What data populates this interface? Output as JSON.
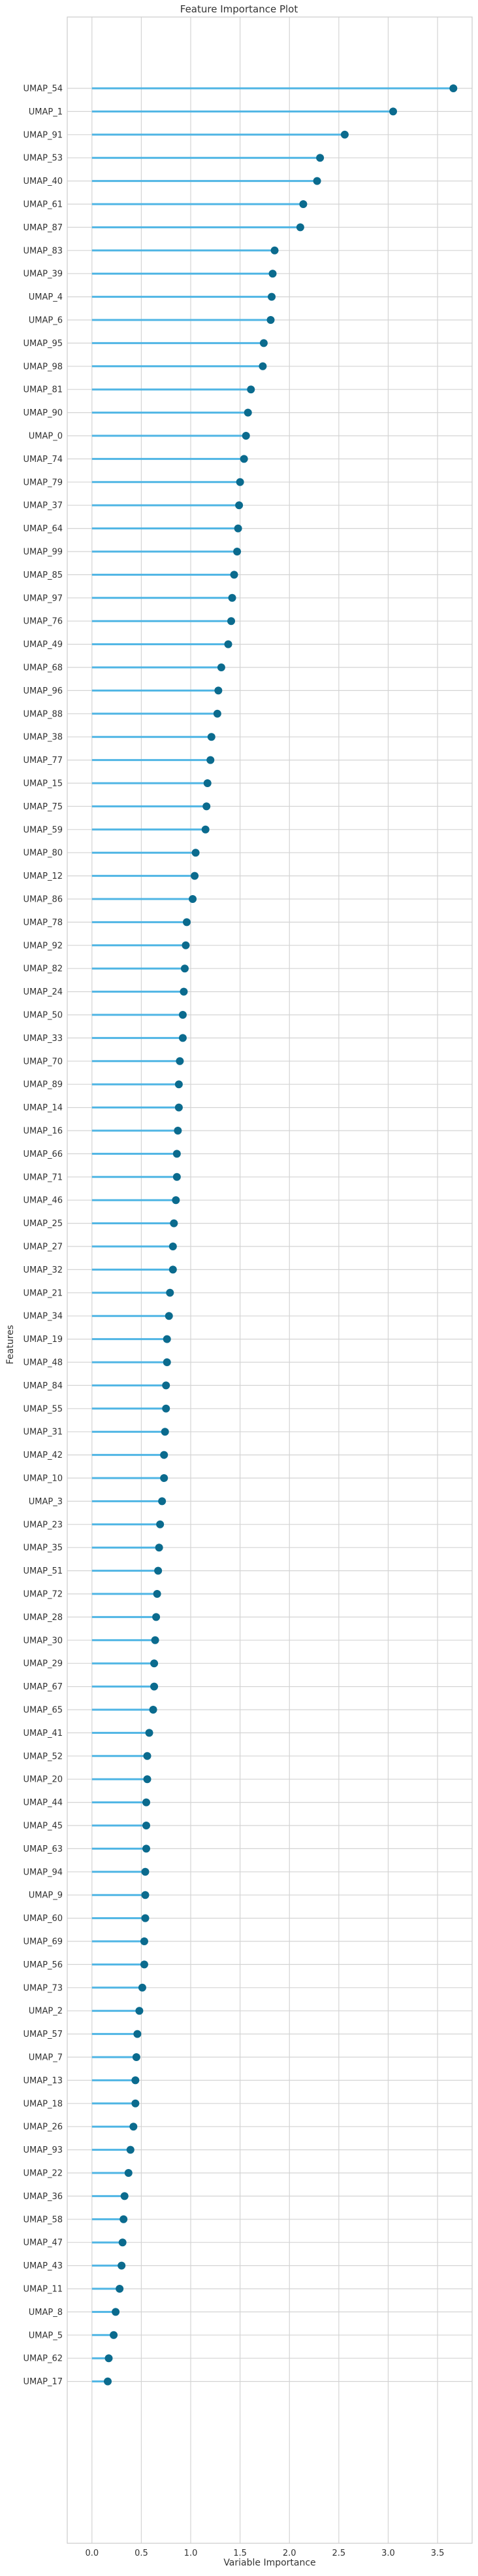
{
  "colors": {
    "line": "#4fb5e4",
    "dot": "#0b6b8e",
    "grid": "#d4d4d4",
    "plot_border": "#cccccc",
    "text": "#333333",
    "background": "#ffffff"
  },
  "chart_data": {
    "type": "lollipop",
    "title": "Feature Importance Plot",
    "xlabel": "Variable Importance",
    "ylabel": "Features",
    "xlim": [
      -0.25,
      3.85
    ],
    "xticks": [
      "0.0",
      "0.5",
      "1.0",
      "1.5",
      "2.0",
      "2.5",
      "3.0",
      "3.5"
    ],
    "grid": true,
    "categories": [
      "UMAP_54",
      "UMAP_1",
      "UMAP_91",
      "UMAP_53",
      "UMAP_40",
      "UMAP_61",
      "UMAP_87",
      "UMAP_83",
      "UMAP_39",
      "UMAP_4",
      "UMAP_6",
      "UMAP_95",
      "UMAP_98",
      "UMAP_81",
      "UMAP_90",
      "UMAP_0",
      "UMAP_74",
      "UMAP_79",
      "UMAP_37",
      "UMAP_64",
      "UMAP_99",
      "UMAP_85",
      "UMAP_97",
      "UMAP_76",
      "UMAP_49",
      "UMAP_68",
      "UMAP_96",
      "UMAP_88",
      "UMAP_38",
      "UMAP_77",
      "UMAP_15",
      "UMAP_75",
      "UMAP_59",
      "UMAP_80",
      "UMAP_12",
      "UMAP_86",
      "UMAP_78",
      "UMAP_92",
      "UMAP_82",
      "UMAP_24",
      "UMAP_50",
      "UMAP_33",
      "UMAP_70",
      "UMAP_89",
      "UMAP_14",
      "UMAP_16",
      "UMAP_66",
      "UMAP_71",
      "UMAP_46",
      "UMAP_25",
      "UMAP_27",
      "UMAP_32",
      "UMAP_21",
      "UMAP_34",
      "UMAP_19",
      "UMAP_48",
      "UMAP_84",
      "UMAP_55",
      "UMAP_31",
      "UMAP_42",
      "UMAP_10",
      "UMAP_3",
      "UMAP_23",
      "UMAP_35",
      "UMAP_51",
      "UMAP_72",
      "UMAP_28",
      "UMAP_30",
      "UMAP_29",
      "UMAP_67",
      "UMAP_65",
      "UMAP_41",
      "UMAP_52",
      "UMAP_20",
      "UMAP_44",
      "UMAP_45",
      "UMAP_63",
      "UMAP_94",
      "UMAP_9",
      "UMAP_60",
      "UMAP_69",
      "UMAP_56",
      "UMAP_73",
      "UMAP_2",
      "UMAP_57",
      "UMAP_7",
      "UMAP_13",
      "UMAP_18",
      "UMAP_26",
      "UMAP_93",
      "UMAP_22",
      "UMAP_36",
      "UMAP_58",
      "UMAP_47",
      "UMAP_43",
      "UMAP_11",
      "UMAP_8",
      "UMAP_5",
      "UMAP_62",
      "UMAP_17"
    ],
    "values": [
      3.66,
      3.05,
      2.56,
      2.31,
      2.28,
      2.14,
      2.11,
      1.85,
      1.83,
      1.82,
      1.81,
      1.74,
      1.73,
      1.61,
      1.58,
      1.56,
      1.54,
      1.5,
      1.49,
      1.48,
      1.47,
      1.44,
      1.42,
      1.41,
      1.38,
      1.31,
      1.28,
      1.27,
      1.21,
      1.2,
      1.17,
      1.16,
      1.15,
      1.05,
      1.04,
      1.02,
      0.96,
      0.95,
      0.94,
      0.93,
      0.92,
      0.92,
      0.89,
      0.88,
      0.88,
      0.87,
      0.86,
      0.86,
      0.85,
      0.83,
      0.82,
      0.82,
      0.79,
      0.78,
      0.76,
      0.76,
      0.75,
      0.75,
      0.74,
      0.73,
      0.73,
      0.71,
      0.69,
      0.68,
      0.67,
      0.66,
      0.65,
      0.64,
      0.63,
      0.63,
      0.62,
      0.58,
      0.56,
      0.56,
      0.55,
      0.55,
      0.55,
      0.54,
      0.54,
      0.54,
      0.53,
      0.53,
      0.51,
      0.48,
      0.46,
      0.45,
      0.44,
      0.44,
      0.42,
      0.39,
      0.37,
      0.33,
      0.32,
      0.31,
      0.3,
      0.28,
      0.24,
      0.22,
      0.17,
      0.16
    ]
  }
}
